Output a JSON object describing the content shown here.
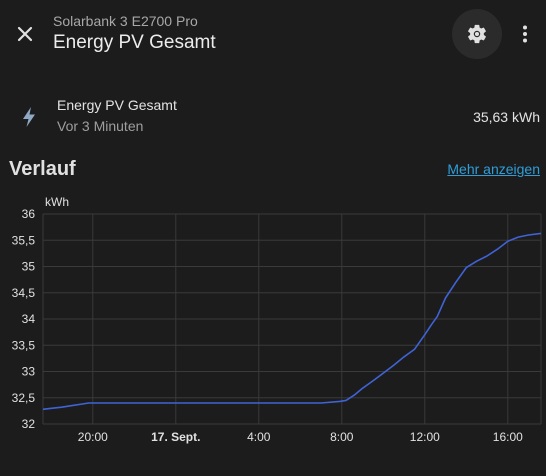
{
  "header": {
    "subtitle": "Solarbank 3 E2700 Pro",
    "title": "Energy PV Gesamt",
    "icons": {
      "close": "close-icon",
      "settings": "gear-icon",
      "more": "more-vertical-icon"
    }
  },
  "entity": {
    "icon": "lightning-bolt-icon",
    "name": "Energy PV Gesamt",
    "last_changed": "Vor 3 Minuten",
    "value": "35,63 kWh"
  },
  "history": {
    "title": "Verlauf",
    "more_link": "Mehr anzeigen"
  },
  "colors": {
    "accent": "#2f9ed8",
    "line": "#3f63d6",
    "background": "#1c1c1c"
  },
  "chart_data": {
    "type": "line",
    "unit_label": "kWh",
    "ylim": [
      32,
      36
    ],
    "y_ticks": [
      "36",
      "35,5",
      "35",
      "34,5",
      "34",
      "33,5",
      "33",
      "32,5",
      "32"
    ],
    "y_tick_values": [
      36,
      35.5,
      35,
      34.5,
      34,
      33.5,
      33,
      32.5,
      32
    ],
    "x_range_hours": [
      17.6,
      41.6
    ],
    "x_ticks": [
      {
        "label": "20:00",
        "hour": 20,
        "bold": false
      },
      {
        "label": "17. Sept.",
        "hour": 24,
        "bold": true
      },
      {
        "label": "4:00",
        "hour": 28,
        "bold": false
      },
      {
        "label": "8:00",
        "hour": 32,
        "bold": false
      },
      {
        "label": "12:00",
        "hour": 36,
        "bold": false
      },
      {
        "label": "16:00",
        "hour": 40,
        "bold": false
      }
    ],
    "grid": true,
    "series": [
      {
        "x": [
          17.6,
          18.0,
          18.5,
          19.0,
          19.5,
          19.8,
          20.5,
          24.0,
          28.0,
          31.0,
          31.9,
          32.2,
          32.6,
          33.0,
          33.5,
          34.0,
          34.5,
          35.0,
          35.5,
          36.0,
          36.3,
          36.6,
          37.0,
          37.5,
          38.0,
          38.5,
          39.0,
          39.5,
          40.0,
          40.5,
          41.0,
          41.6
        ],
        "y": [
          32.28,
          32.3,
          32.32,
          32.35,
          32.38,
          32.4,
          32.4,
          32.4,
          32.4,
          32.4,
          32.43,
          32.45,
          32.55,
          32.68,
          32.82,
          32.97,
          33.12,
          33.28,
          33.42,
          33.7,
          33.88,
          34.05,
          34.4,
          34.7,
          34.98,
          35.1,
          35.2,
          35.33,
          35.48,
          35.56,
          35.6,
          35.63
        ]
      }
    ]
  }
}
